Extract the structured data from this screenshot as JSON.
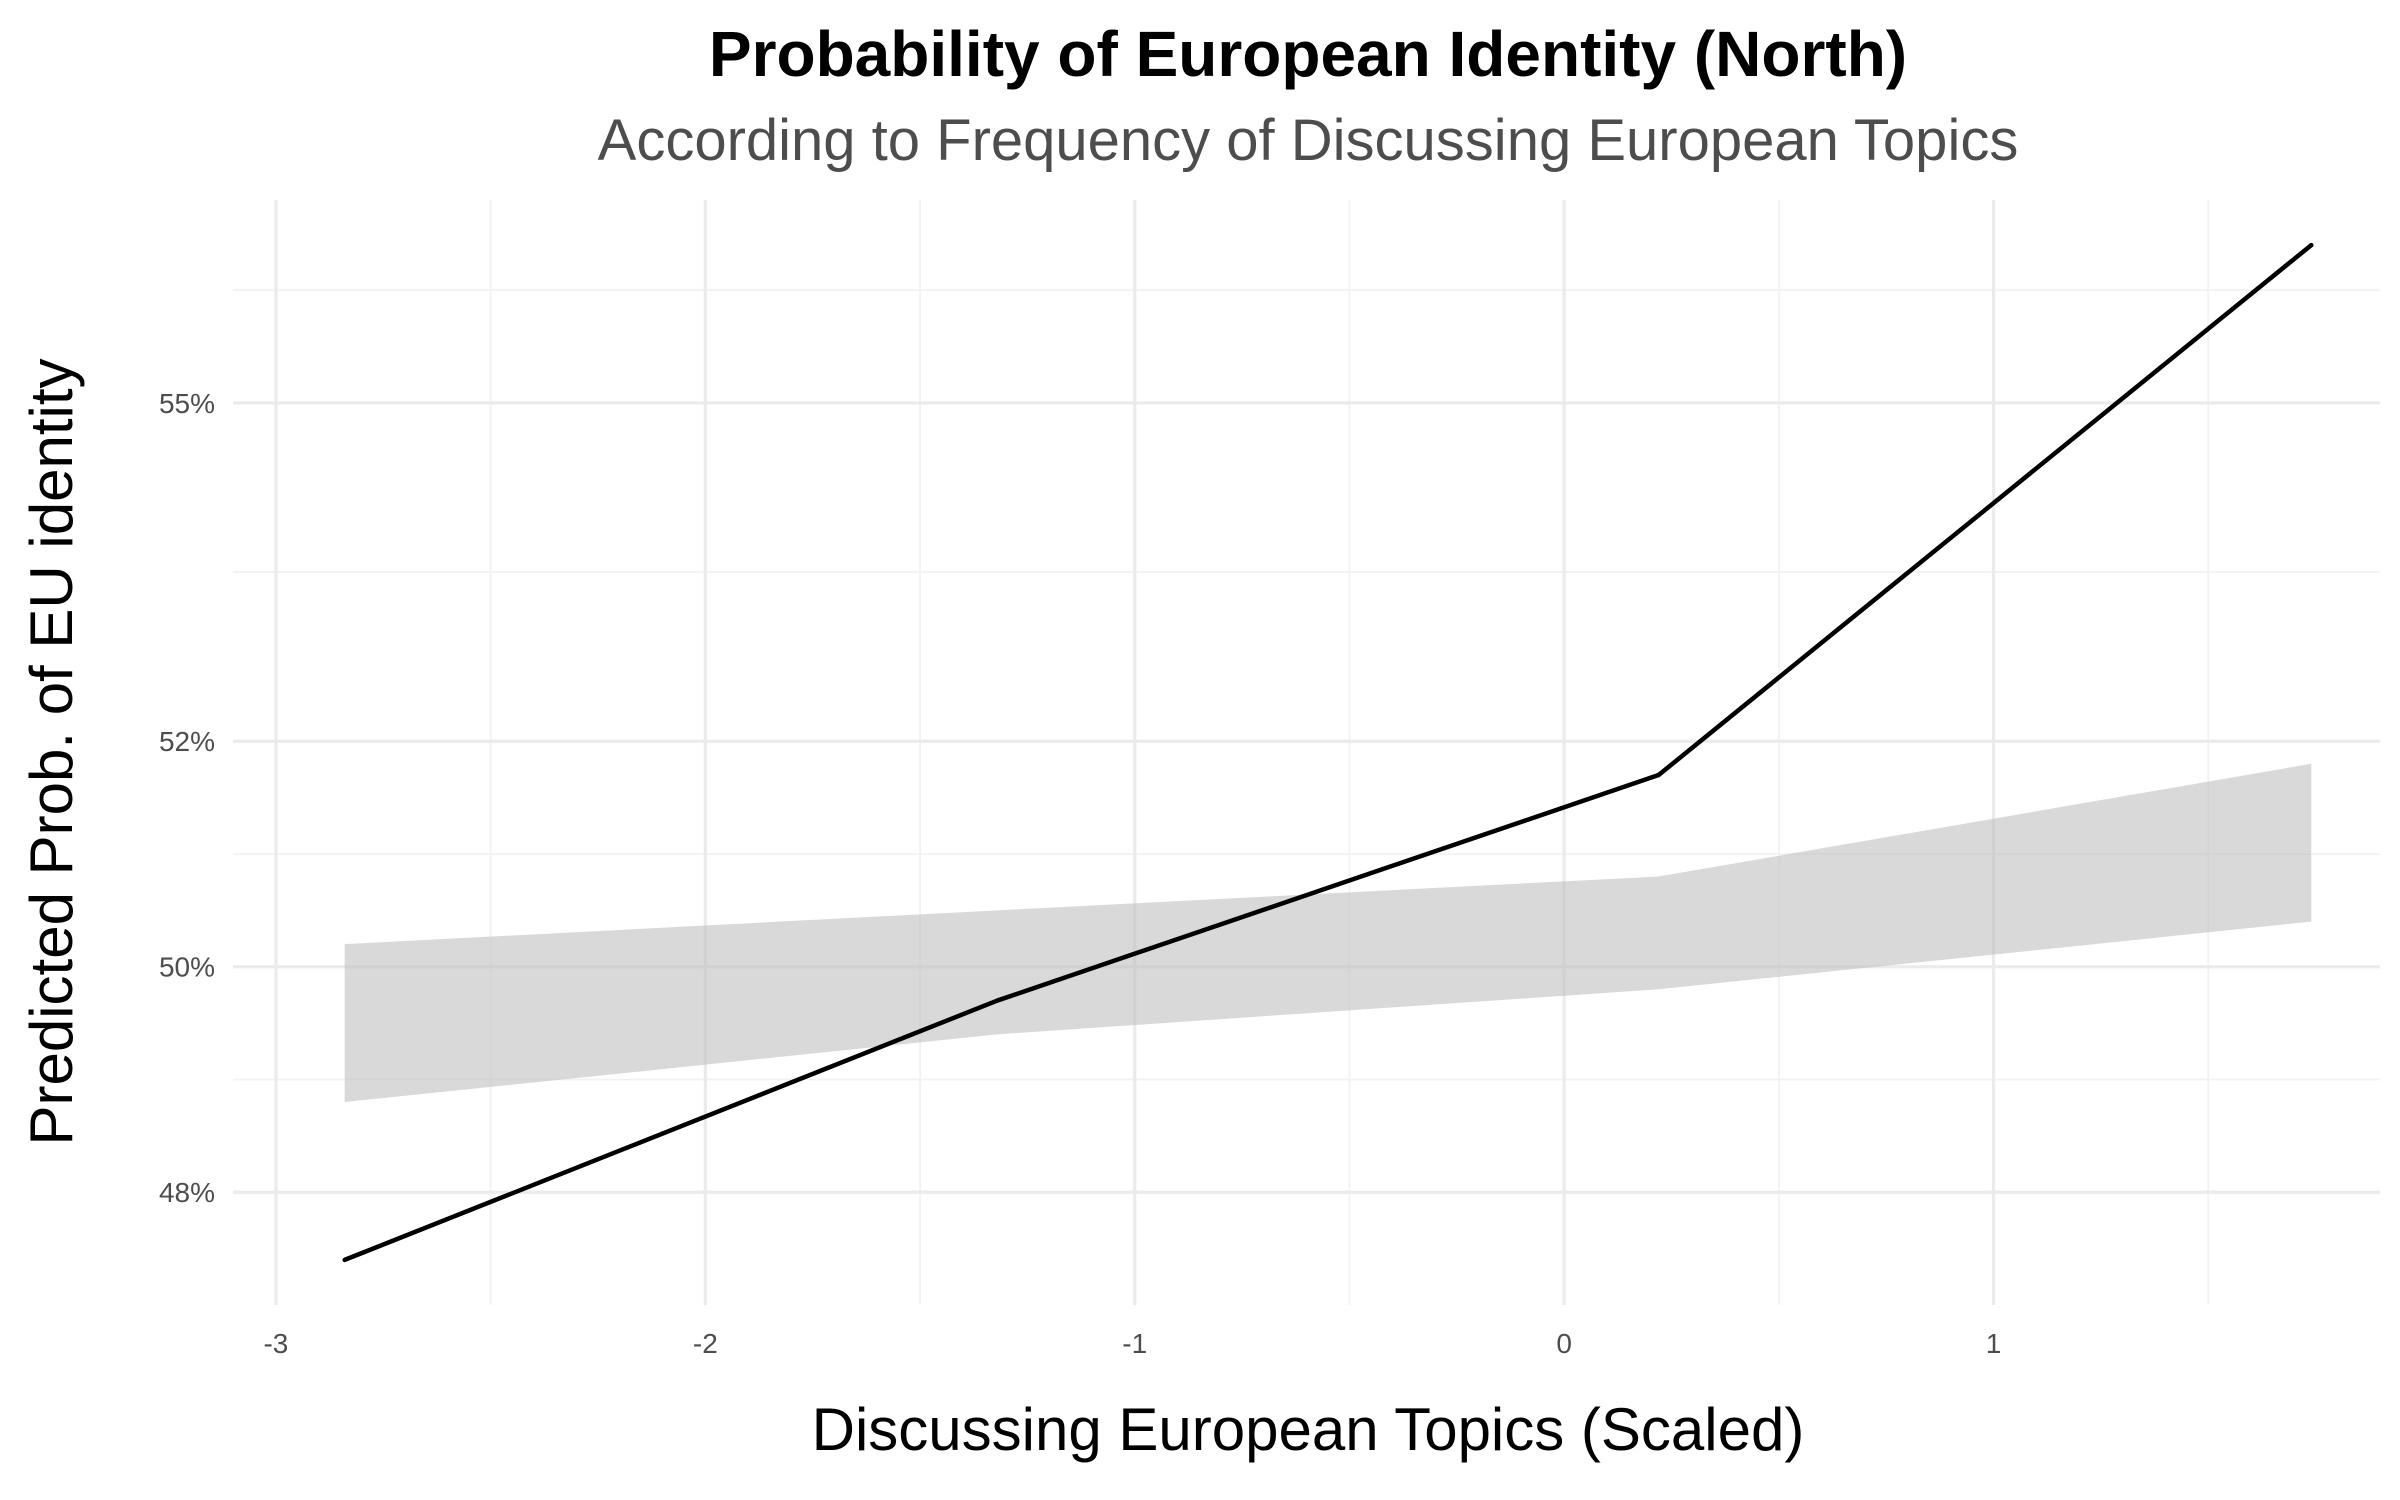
{
  "chart_data": {
    "type": "line",
    "title": "Probability of European Identity (North)",
    "subtitle": "According to Frequency of Discussing European Topics",
    "xlabel": "Discussing European Topics (Scaled)",
    "ylabel": "Predicted Prob. of EU identity",
    "xlim": [
      -3.1,
      1.9
    ],
    "ylim": [
      47.0,
      56.8
    ],
    "x_ticks": [
      {
        "value": -3,
        "label": "-3"
      },
      {
        "value": -2,
        "label": "-2"
      },
      {
        "value": -1,
        "label": "-1"
      },
      {
        "value": 0,
        "label": "0"
      },
      {
        "value": 1,
        "label": "1"
      }
    ],
    "y_ticks": [
      {
        "value": 48,
        "label": "48%"
      },
      {
        "value": 50,
        "label": "50%"
      },
      {
        "value": 52,
        "label": "52%"
      },
      {
        "value": 55,
        "label": "55%"
      }
    ],
    "x_minor_gridlines": [
      -2.5,
      -1.5,
      -0.5,
      0.5,
      1.5
    ],
    "y_minor_gridlines": [
      49,
      51,
      53.5,
      56
    ],
    "series": [
      {
        "x": [
          -2.84,
          -1.32,
          0.22,
          1.74
        ],
        "y": [
          47.4,
          49.7,
          51.7,
          56.4
        ]
      }
    ],
    "confidence_band": {
      "x": [
        -2.84,
        -1.32,
        0.22,
        1.74
      ],
      "lower": [
        48.8,
        49.4,
        49.8,
        50.4
      ],
      "upper": [
        50.2,
        50.5,
        50.8,
        51.8
      ]
    },
    "grid": true,
    "legend": "none",
    "colors": {
      "line": "#000000",
      "band": "#bfbfbf",
      "grid_major": "#ebebeb",
      "grid_minor": "#f2f2f2",
      "tick_text": "#4d4d4d",
      "subtitle_text": "#4d4d4d"
    }
  }
}
